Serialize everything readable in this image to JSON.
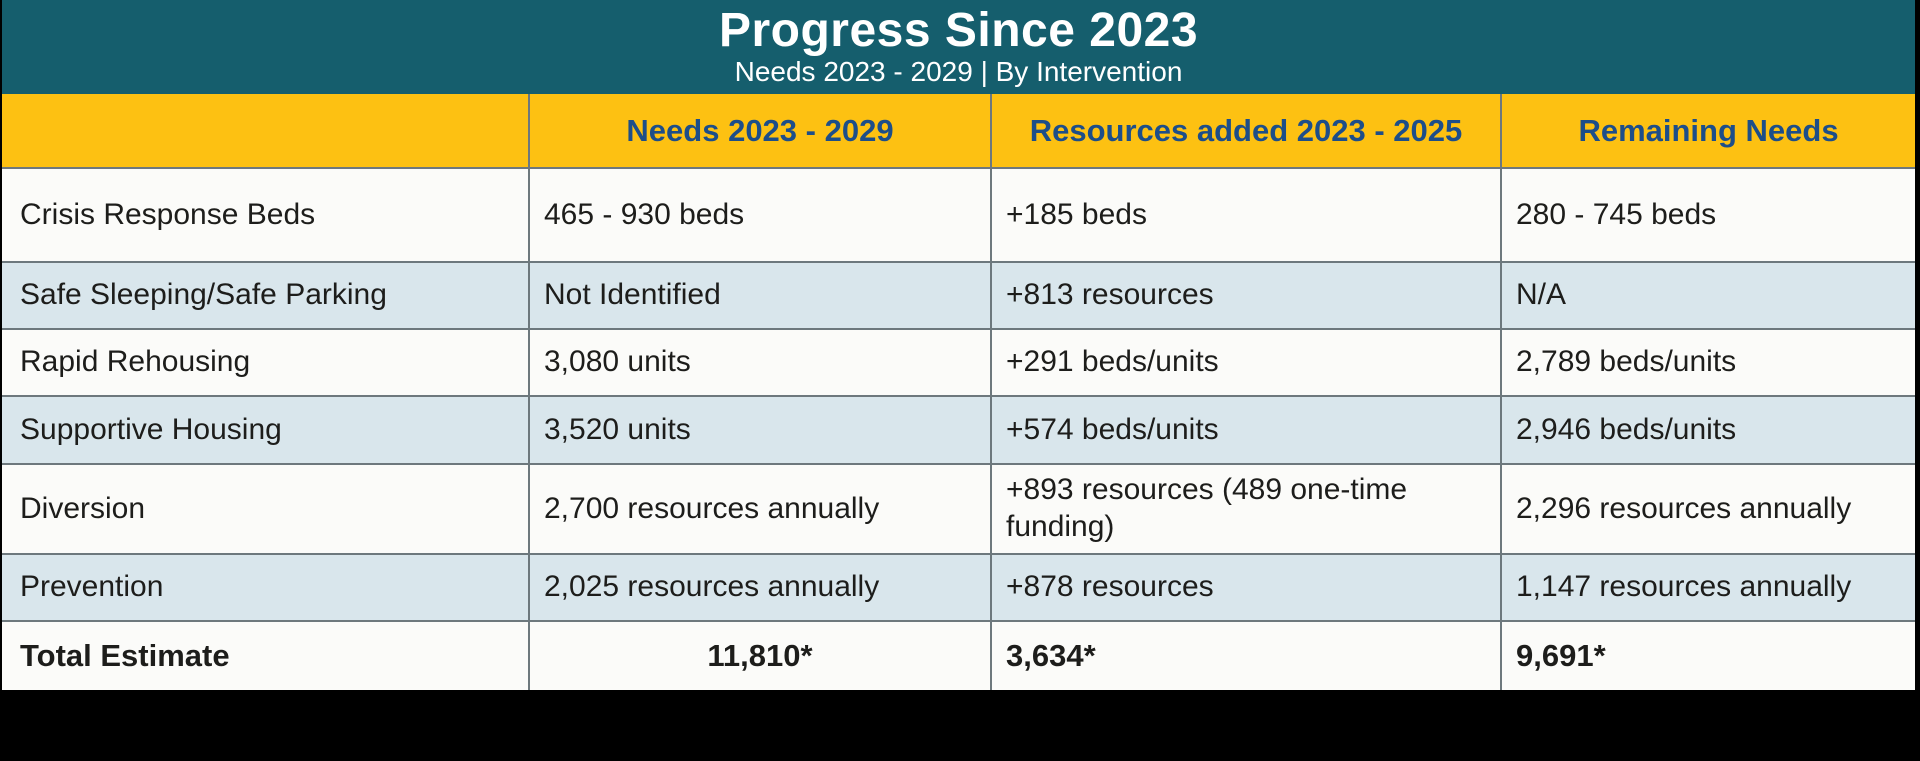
{
  "colors": {
    "background": "#000000",
    "teal_band": "#155e6d",
    "gold_header": "#fdc112",
    "navy_header_text": "#1d4e89",
    "row_light_blue": "#d9e6ec",
    "row_white": "#fbfbf9",
    "body_text": "#1d1d1b",
    "grid_line": "#6d787d",
    "title_text": "#ffffff"
  },
  "chart_data": {
    "type": "table",
    "title": "Progress Since 2023",
    "subtitle": "Needs 2023 - 2029 | By Intervention",
    "columns": [
      "",
      "Needs 2023 - 2029",
      "Resources added 2023 - 2025",
      "Remaining Needs"
    ],
    "rows": [
      [
        "Crisis Response Beds",
        "465 - 930 beds",
        "+185 beds",
        "280 - 745 beds"
      ],
      [
        "Safe Sleeping/Safe Parking",
        "Not Identified",
        "+813 resources",
        "N/A"
      ],
      [
        "Rapid Rehousing",
        "3,080 units",
        "+291 beds/units",
        "2,789 beds/units"
      ],
      [
        "Supportive Housing",
        "3,520 units",
        "+574 beds/units",
        "2,946 beds/units"
      ],
      [
        "Diversion",
        "2,700 resources annually",
        "+893 resources (489 one-time funding)",
        "2,296 resources annually"
      ],
      [
        "Prevention",
        "2,025 resources annually",
        "+878 resources",
        "1,147 resources annually"
      ],
      [
        "Total Estimate",
        "11,810*",
        "3,634*",
        "9,691*"
      ]
    ],
    "layout_hints": {
      "striping": "white / light-blue alternating rows",
      "header_fill": "gold with navy bold text",
      "title_band_fill": "teal with white text",
      "total_row": "bold, needs value centered"
    }
  }
}
